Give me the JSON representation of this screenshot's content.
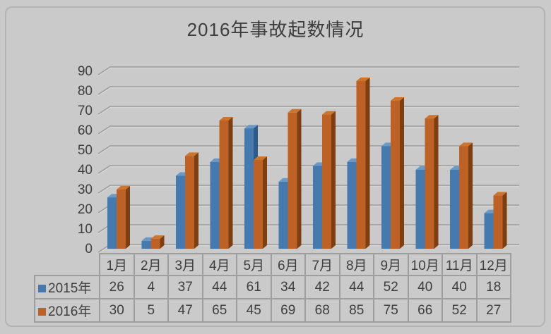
{
  "title": "2016年事故起数情况",
  "colors": {
    "background": "#cacaca",
    "frame_border": "#b3b3b3",
    "gridline": "#9c9c9c",
    "gridline_highlight": "#d6d6d6",
    "text": "#3e3e3e",
    "table_border": "#9e9e9e"
  },
  "chart_data": {
    "type": "bar",
    "style": "3d-column",
    "title": "2016年事故起数情况",
    "categories": [
      "1月",
      "2月",
      "3月",
      "4月",
      "5月",
      "6月",
      "7月",
      "8月",
      "9月",
      "10月",
      "11月",
      "12月"
    ],
    "series": [
      {
        "name": "2015年",
        "values": [
          26,
          4,
          37,
          44,
          61,
          34,
          42,
          44,
          52,
          40,
          40,
          18
        ],
        "color": "#4679ad",
        "color_side": "#2d5c8a",
        "color_top": "#6b99c5"
      },
      {
        "name": "2016年",
        "values": [
          30,
          5,
          47,
          65,
          45,
          69,
          68,
          85,
          75,
          66,
          52,
          27
        ],
        "color": "#bd6127",
        "color_side": "#7d3f12",
        "color_top": "#cb752e"
      }
    ],
    "xlabel": "",
    "ylabel": "",
    "ylim": [
      0,
      90
    ],
    "ytick_step": 10,
    "yticks": [
      0,
      10,
      20,
      30,
      40,
      50,
      60,
      70,
      80,
      90
    ],
    "grid": true,
    "legend_position": "data-table-left",
    "data_table_shown": true
  }
}
